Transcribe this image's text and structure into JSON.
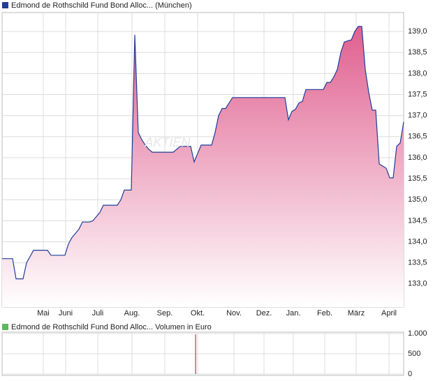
{
  "chart_data": [
    {
      "type": "area",
      "title": "Edmond de Rothschild Fund Bond Alloc... (München)",
      "watermark": "AKTIEN",
      "color": "#1f3d99",
      "fill": "#e0608f",
      "values": [
        133.6,
        133.6,
        133.6,
        133.6,
        133.12,
        133.12,
        133.12,
        133.5,
        133.65,
        133.8,
        133.8,
        133.8,
        133.8,
        133.8,
        133.68,
        133.68,
        133.68,
        133.68,
        133.68,
        133.95,
        134.1,
        134.2,
        134.3,
        134.47,
        134.47,
        134.47,
        134.5,
        134.6,
        134.7,
        134.87,
        134.87,
        134.87,
        134.87,
        134.87,
        135.0,
        135.23,
        135.23,
        135.23,
        138.92,
        136.6,
        136.43,
        136.3,
        136.2,
        136.13,
        136.13,
        136.13,
        136.13,
        136.13,
        136.13,
        136.13,
        136.2,
        136.27,
        136.27,
        136.27,
        136.27,
        135.9,
        136.1,
        136.3,
        136.3,
        136.3,
        136.3,
        136.6,
        137.0,
        137.17,
        137.17,
        137.3,
        137.43,
        137.43,
        137.43,
        137.43,
        137.43,
        137.43,
        137.43,
        137.43,
        137.43,
        137.43,
        137.43,
        137.43,
        137.43,
        137.43,
        137.43,
        137.43,
        136.9,
        137.1,
        137.15,
        137.3,
        137.34,
        137.62,
        137.62,
        137.62,
        137.62,
        137.62,
        137.62,
        137.79,
        137.79,
        137.92,
        138.1,
        138.5,
        138.75,
        138.78,
        138.8,
        139.0,
        139.12,
        139.12,
        138.1,
        137.55,
        137.13,
        137.13,
        135.85,
        135.8,
        135.75,
        135.52,
        135.52,
        136.27,
        136.35,
        136.85
      ],
      "xlim": [
        0,
        115
      ],
      "xticks": [
        {
          "value": 11.8,
          "label": "Mai"
        },
        {
          "value": 18.2,
          "label": "Juni"
        },
        {
          "value": 27.4,
          "label": "Juli"
        },
        {
          "value": 37.2,
          "label": "Aug."
        },
        {
          "value": 46.6,
          "label": "Sep."
        },
        {
          "value": 56,
          "label": "Okt."
        },
        {
          "value": 66.4,
          "label": "Nov."
        },
        {
          "value": 75,
          "label": "Dez."
        },
        {
          "value": 83.4,
          "label": "Jan."
        },
        {
          "value": 92.4,
          "label": "Feb."
        },
        {
          "value": 101.4,
          "label": "März"
        },
        {
          "value": 110.8,
          "label": "April"
        }
      ],
      "ylim": [
        132.45,
        139.45
      ],
      "yticks": [
        {
          "value": 133.0,
          "label": "133,0"
        },
        {
          "value": 133.5,
          "label": "133,5"
        },
        {
          "value": 134.0,
          "label": "134,0"
        },
        {
          "value": 134.5,
          "label": "134,5"
        },
        {
          "value": 135.0,
          "label": "135,0"
        },
        {
          "value": 135.5,
          "label": "135,5"
        },
        {
          "value": 136.0,
          "label": "136,0"
        },
        {
          "value": 136.5,
          "label": "136,5"
        },
        {
          "value": 137.0,
          "label": "137,0"
        },
        {
          "value": 137.5,
          "label": "137,5"
        },
        {
          "value": 138.0,
          "label": "138,0"
        },
        {
          "value": 138.5,
          "label": "138,5"
        },
        {
          "value": 139.0,
          "label": "139,0"
        }
      ],
      "grid": true
    },
    {
      "type": "bar",
      "title": "Edmond de Rothschild Fund Bond Alloc... Volumen in Euro",
      "color": "#c0304a",
      "legend_color": "#5cb85c",
      "x": [
        55.4
      ],
      "values": [
        980
      ],
      "xlim": [
        0,
        115
      ],
      "ylim": [
        0,
        1000
      ],
      "yticks": [
        0,
        {
          "value": 500,
          "label": "500"
        },
        {
          "value": 1000,
          "label": "1.000"
        }
      ],
      "grid": true
    }
  ]
}
